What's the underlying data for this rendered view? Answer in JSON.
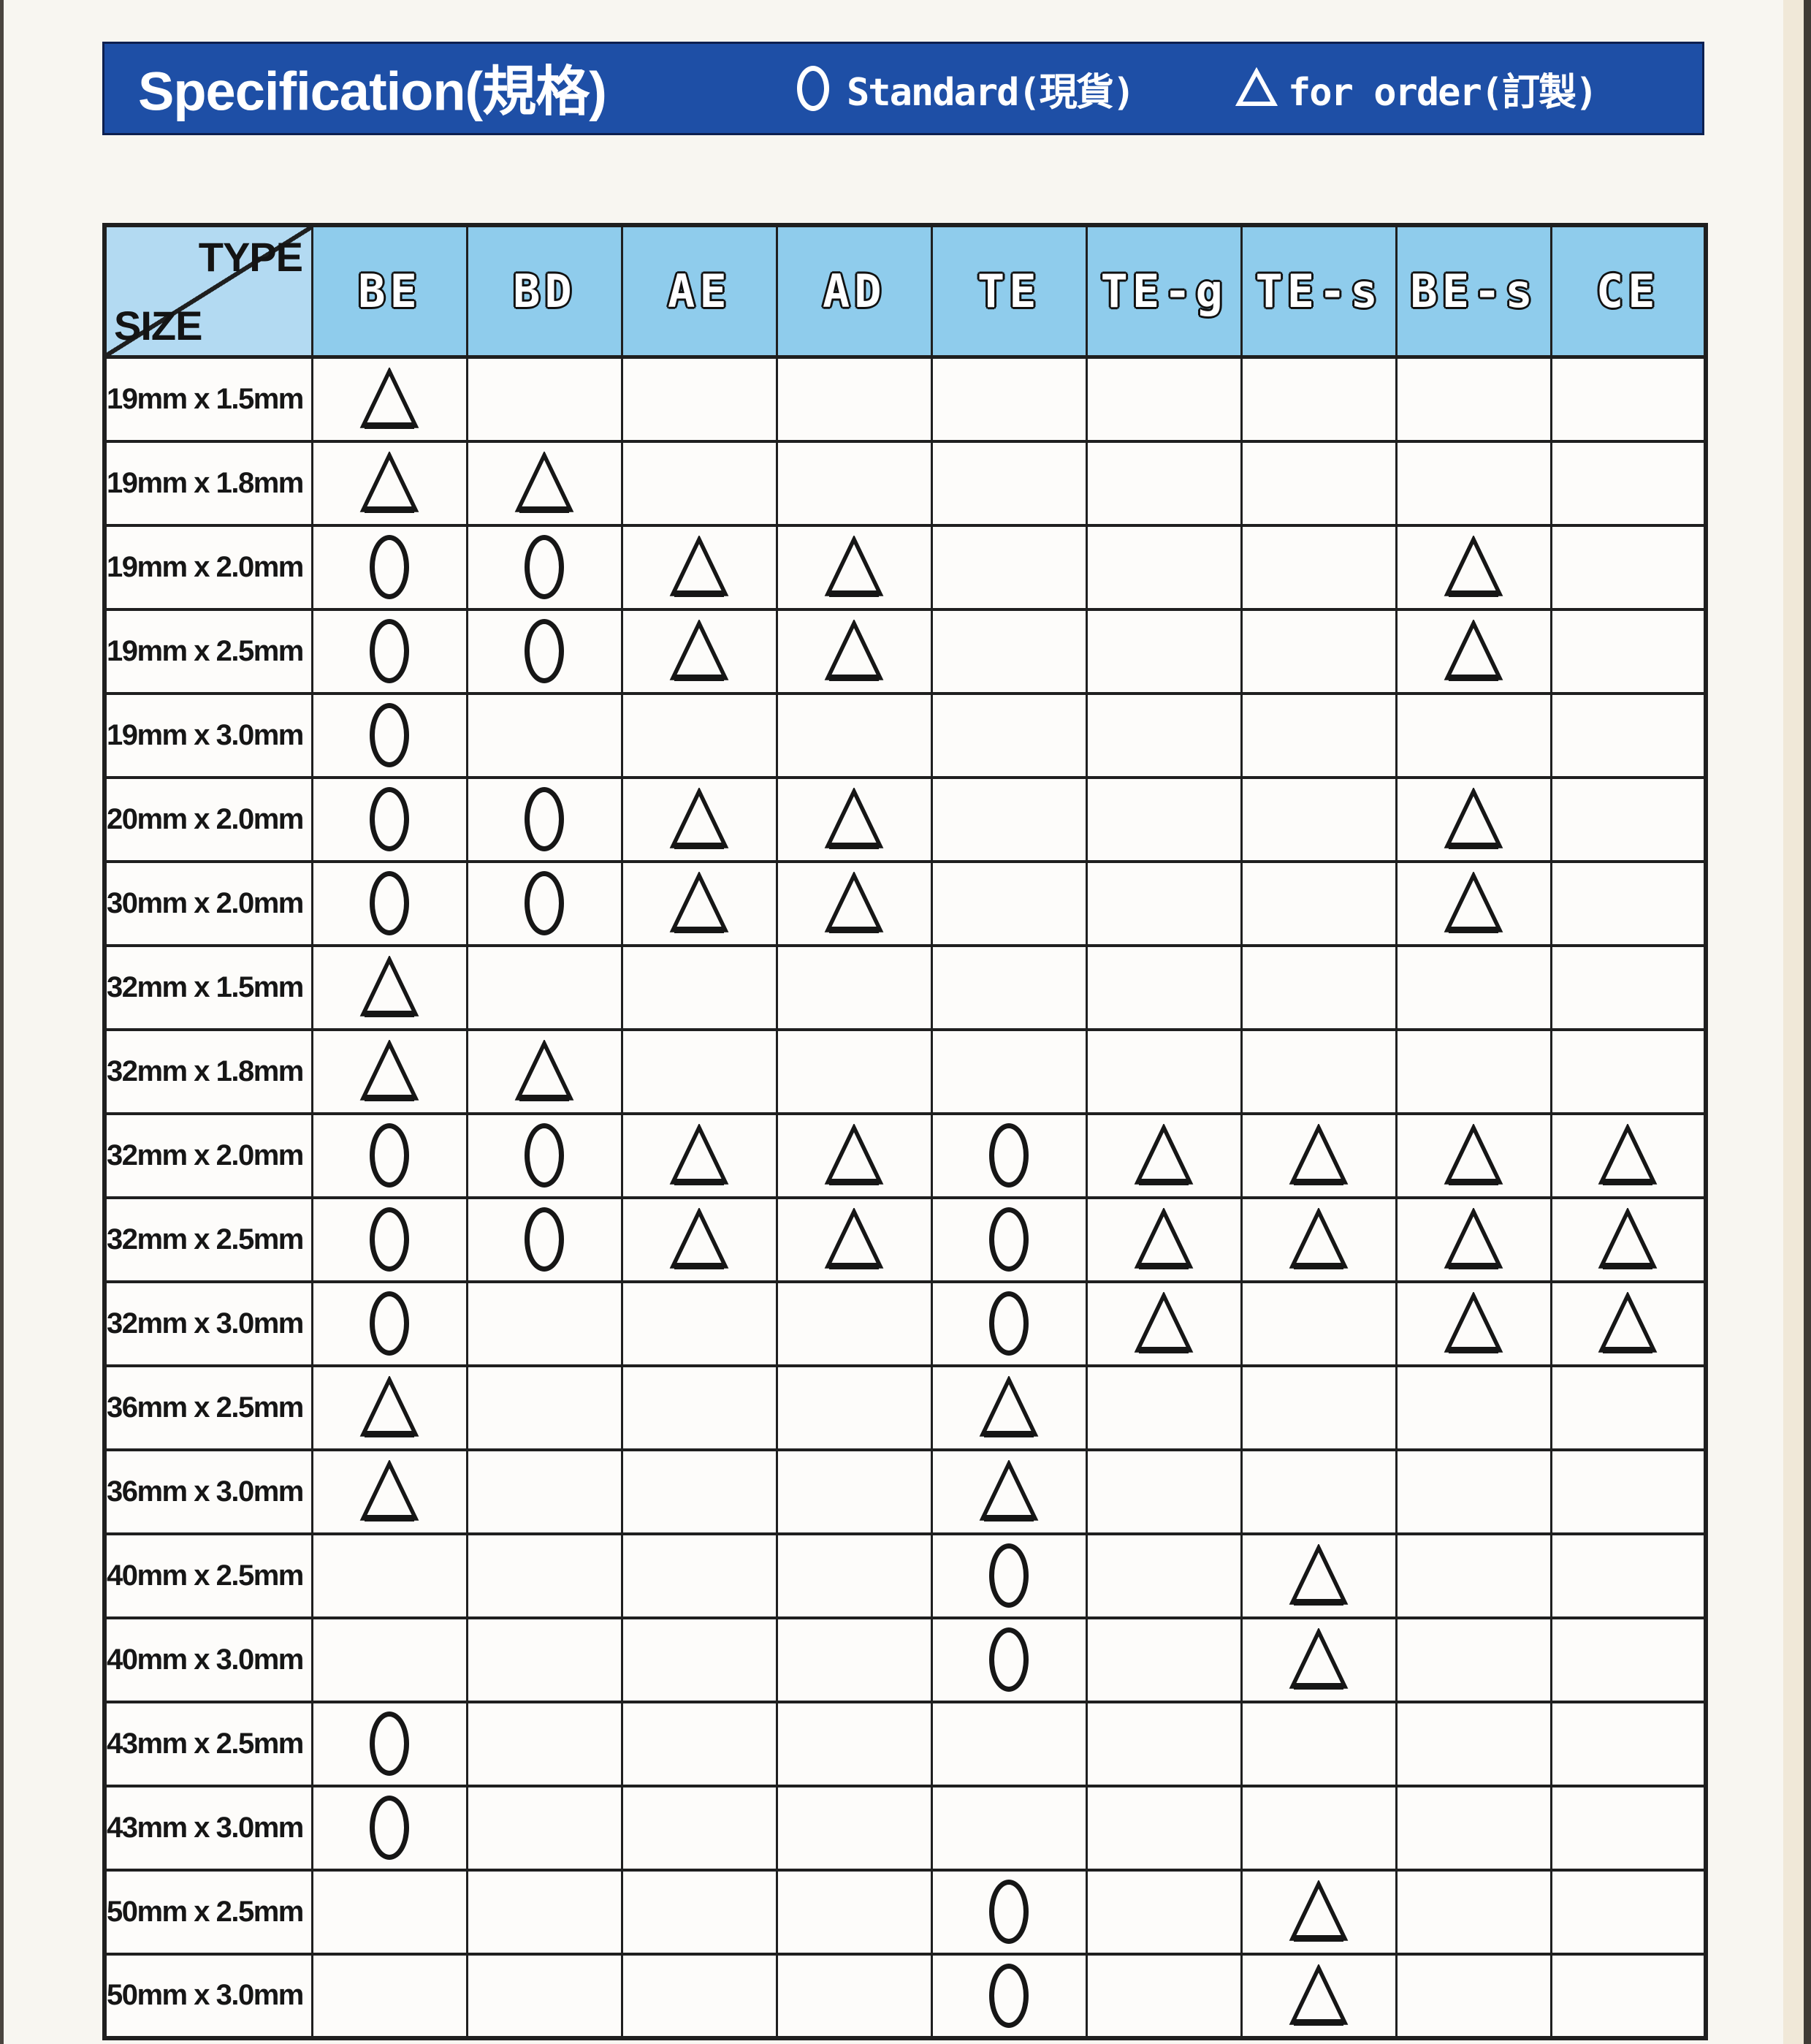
{
  "page": {
    "title": "Specification(規格)",
    "legend": {
      "standard": {
        "symbol": "circle",
        "label": "Standard(現貨)"
      },
      "order": {
        "symbol": "triangle",
        "label": "for order(訂製)"
      }
    }
  },
  "table": {
    "corner_top": "TYPE",
    "corner_bottom": "SIZE",
    "columns": [
      "BE",
      "BD",
      "AE",
      "AD",
      "TE",
      "TE-g",
      "TE-s",
      "BE-s",
      "CE"
    ],
    "rows": [
      {
        "size": "19mm x 1.5mm",
        "marks": [
          "triangle",
          "",
          "",
          "",
          "",
          "",
          "",
          "",
          ""
        ]
      },
      {
        "size": "19mm x 1.8mm",
        "marks": [
          "triangle",
          "triangle",
          "",
          "",
          "",
          "",
          "",
          "",
          ""
        ]
      },
      {
        "size": "19mm x 2.0mm",
        "marks": [
          "circle",
          "circle",
          "triangle",
          "triangle",
          "",
          "",
          "",
          "triangle",
          ""
        ]
      },
      {
        "size": "19mm x 2.5mm",
        "marks": [
          "circle",
          "circle",
          "triangle",
          "triangle",
          "",
          "",
          "",
          "triangle",
          ""
        ]
      },
      {
        "size": "19mm x 3.0mm",
        "marks": [
          "circle",
          "",
          "",
          "",
          "",
          "",
          "",
          "",
          ""
        ]
      },
      {
        "size": "20mm x 2.0mm",
        "marks": [
          "circle",
          "circle",
          "triangle",
          "triangle",
          "",
          "",
          "",
          "triangle",
          ""
        ]
      },
      {
        "size": "30mm x 2.0mm",
        "marks": [
          "circle",
          "circle",
          "triangle",
          "triangle",
          "",
          "",
          "",
          "triangle",
          ""
        ]
      },
      {
        "size": "32mm x 1.5mm",
        "marks": [
          "triangle",
          "",
          "",
          "",
          "",
          "",
          "",
          "",
          ""
        ]
      },
      {
        "size": "32mm x 1.8mm",
        "marks": [
          "triangle",
          "triangle",
          "",
          "",
          "",
          "",
          "",
          "",
          ""
        ]
      },
      {
        "size": "32mm x 2.0mm",
        "marks": [
          "circle",
          "circle",
          "triangle",
          "triangle",
          "circle",
          "triangle",
          "triangle",
          "triangle",
          "triangle"
        ]
      },
      {
        "size": "32mm x 2.5mm",
        "marks": [
          "circle",
          "circle",
          "triangle",
          "triangle",
          "circle",
          "triangle",
          "triangle",
          "triangle",
          "triangle"
        ]
      },
      {
        "size": "32mm x 3.0mm",
        "marks": [
          "circle",
          "",
          "",
          "",
          "circle",
          "triangle",
          "",
          "triangle",
          "triangle"
        ]
      },
      {
        "size": "36mm x 2.5mm",
        "marks": [
          "triangle",
          "",
          "",
          "",
          "triangle",
          "",
          "",
          "",
          ""
        ]
      },
      {
        "size": "36mm x 3.0mm",
        "marks": [
          "triangle",
          "",
          "",
          "",
          "triangle",
          "",
          "",
          "",
          ""
        ]
      },
      {
        "size": "40mm x 2.5mm",
        "marks": [
          "",
          "",
          "",
          "",
          "circle",
          "",
          "triangle",
          "",
          ""
        ]
      },
      {
        "size": "40mm x 3.0mm",
        "marks": [
          "",
          "",
          "",
          "",
          "circle",
          "",
          "triangle",
          "",
          ""
        ]
      },
      {
        "size": "43mm x 2.5mm",
        "marks": [
          "circle",
          "",
          "",
          "",
          "",
          "",
          "",
          "",
          ""
        ]
      },
      {
        "size": "43mm x 3.0mm",
        "marks": [
          "circle",
          "",
          "",
          "",
          "",
          "",
          "",
          "",
          ""
        ]
      },
      {
        "size": "50mm x 2.5mm",
        "marks": [
          "",
          "",
          "",
          "",
          "circle",
          "",
          "triangle",
          "",
          ""
        ]
      },
      {
        "size": "50mm x 3.0mm",
        "marks": [
          "",
          "",
          "",
          "",
          "circle",
          "",
          "triangle",
          "",
          ""
        ]
      }
    ]
  },
  "colors": {
    "title_bar_blue": "#1e4fa6",
    "header_light_blue": "#8fccec",
    "corner_light_blue": "#b3daf2",
    "grid_line": "#1f1f1f",
    "mark_black": "#161616",
    "page_background": "#f8f6f1"
  }
}
